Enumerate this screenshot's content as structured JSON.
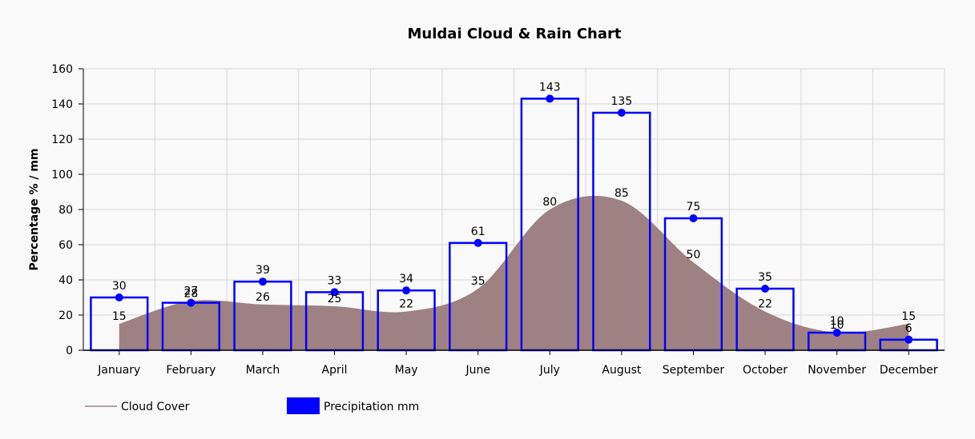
{
  "chart_data": {
    "type": "bar",
    "title": "Muldai Cloud & Rain Chart",
    "xlabel": "",
    "ylabel": "Percentage % / mm",
    "ylim": [
      0,
      160
    ],
    "yticks": [
      0,
      20,
      40,
      60,
      80,
      100,
      120,
      140,
      160
    ],
    "grid": true,
    "legend_position": "bottom-left",
    "categories": [
      "January",
      "February",
      "March",
      "April",
      "May",
      "June",
      "July",
      "August",
      "September",
      "October",
      "November",
      "December"
    ],
    "series": [
      {
        "name": "Cloud Cover",
        "type": "area",
        "color": "#9e8182",
        "values": [
          15,
          28,
          26,
          25,
          22,
          35,
          80,
          85,
          50,
          22,
          10,
          15
        ]
      },
      {
        "name": "Precipitation mm",
        "type": "bar",
        "color": "#0000ff",
        "values": [
          30,
          27,
          39,
          33,
          34,
          61,
          143,
          135,
          75,
          35,
          10,
          6
        ]
      }
    ]
  }
}
